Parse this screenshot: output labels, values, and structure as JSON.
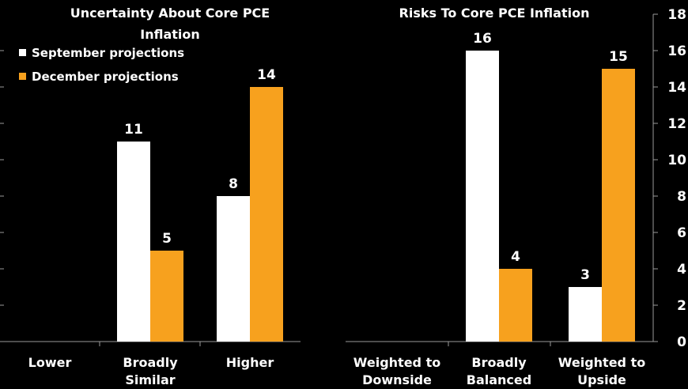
{
  "colors": {
    "background": "#000000",
    "september": "#ffffff",
    "december": "#f7a11e",
    "axis": "#9a9a9a"
  },
  "legend": [
    {
      "label": "September projections",
      "color": "#ffffff"
    },
    {
      "label": "December projections",
      "color": "#f7a11e"
    }
  ],
  "chart_data": [
    {
      "type": "bar",
      "title": "Uncertainty About Core PCE Inflation",
      "categories": [
        "Lower",
        "Broadly Similar",
        "Higher"
      ],
      "series": [
        {
          "name": "September projections",
          "values": [
            0,
            11,
            8
          ]
        },
        {
          "name": "December projections",
          "values": [
            0,
            5,
            14
          ]
        }
      ],
      "ylim": [
        0,
        18
      ],
      "grid": false,
      "legend": "top-left"
    },
    {
      "type": "bar",
      "title": "Risks To Core PCE Inflation",
      "categories": [
        "Weighted to Downside",
        "Broadly Balanced",
        "Weighted to Upside"
      ],
      "series": [
        {
          "name": "September projections",
          "values": [
            0,
            16,
            3
          ]
        },
        {
          "name": "December projections",
          "values": [
            0,
            4,
            15
          ]
        }
      ],
      "ylim": [
        0,
        18
      ],
      "yticks": [
        "0",
        "2",
        "4",
        "6",
        "8",
        "10",
        "12",
        "14",
        "16",
        "18"
      ],
      "grid": false
    }
  ]
}
